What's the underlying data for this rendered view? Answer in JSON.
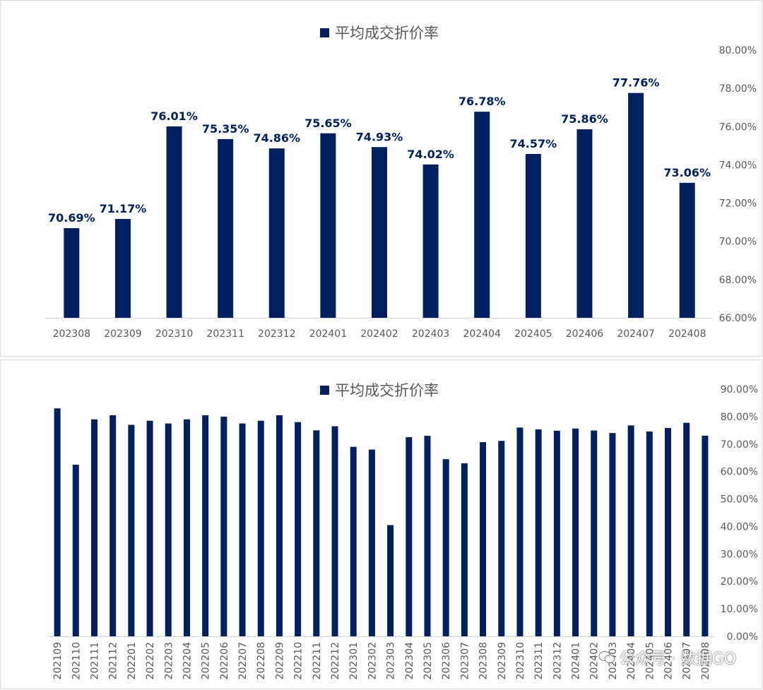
{
  "colors": {
    "bar": "#002060",
    "axis_text": "#595959",
    "gridline": "#d9d9d9"
  },
  "watermark": {
    "text": "公众号 · 数据GO",
    "icon": "wechat-icon"
  },
  "chart_data": [
    {
      "type": "bar",
      "legend": "平均成交折价率",
      "legend_position": "top-center",
      "categories": [
        "202308",
        "202309",
        "202310",
        "202311",
        "202312",
        "202401",
        "202402",
        "202403",
        "202404",
        "202405",
        "202406",
        "202407",
        "202408"
      ],
      "series": [
        {
          "name": "平均成交折价率",
          "values": [
            70.69,
            71.17,
            76.01,
            75.35,
            74.86,
            75.65,
            74.93,
            74.02,
            76.78,
            74.57,
            75.86,
            77.76,
            73.06
          ],
          "data_labels": [
            "70.69%",
            "71.17%",
            "76.01%",
            "75.35%",
            "74.86%",
            "75.65%",
            "74.93%",
            "74.02%",
            "76.78%",
            "74.57%",
            "75.86%",
            "77.76%",
            "73.06%"
          ]
        }
      ],
      "y_axis": {
        "position": "right",
        "min": 66,
        "max": 80,
        "step": 2,
        "tick_labels": [
          "66.00%",
          "68.00%",
          "70.00%",
          "72.00%",
          "74.00%",
          "76.00%",
          "78.00%",
          "80.00%"
        ]
      },
      "grid": false
    },
    {
      "type": "bar",
      "legend": "平均成交折价率",
      "legend_position": "top-center",
      "categories": [
        "202109",
        "202110",
        "202111",
        "202112",
        "202201",
        "202202",
        "202203",
        "202204",
        "202205",
        "202206",
        "202207",
        "202208",
        "202209",
        "202210",
        "202211",
        "202212",
        "202301",
        "202302",
        "202303",
        "202304",
        "202305",
        "202306",
        "202307",
        "202308",
        "202309",
        "202310",
        "202311",
        "202312",
        "202401",
        "202402",
        "202403",
        "202404",
        "202405",
        "202406",
        "202407",
        "202408"
      ],
      "series": [
        {
          "name": "平均成交折价率",
          "values": [
            83.0,
            62.5,
            79.0,
            80.5,
            77.0,
            78.5,
            77.5,
            79.0,
            80.5,
            80.0,
            77.5,
            78.5,
            80.5,
            78.0,
            75.0,
            76.5,
            69.0,
            68.0,
            40.5,
            72.5,
            73.0,
            64.5,
            63.0,
            70.69,
            71.17,
            76.01,
            75.35,
            74.86,
            75.65,
            74.93,
            74.02,
            76.78,
            74.57,
            75.86,
            77.76,
            73.06
          ]
        }
      ],
      "y_axis": {
        "position": "right",
        "min": 0,
        "max": 90,
        "step": 10,
        "tick_labels": [
          "0.00%",
          "10.00%",
          "20.00%",
          "30.00%",
          "40.00%",
          "50.00%",
          "60.00%",
          "70.00%",
          "80.00%",
          "90.00%"
        ]
      },
      "grid": false
    }
  ]
}
